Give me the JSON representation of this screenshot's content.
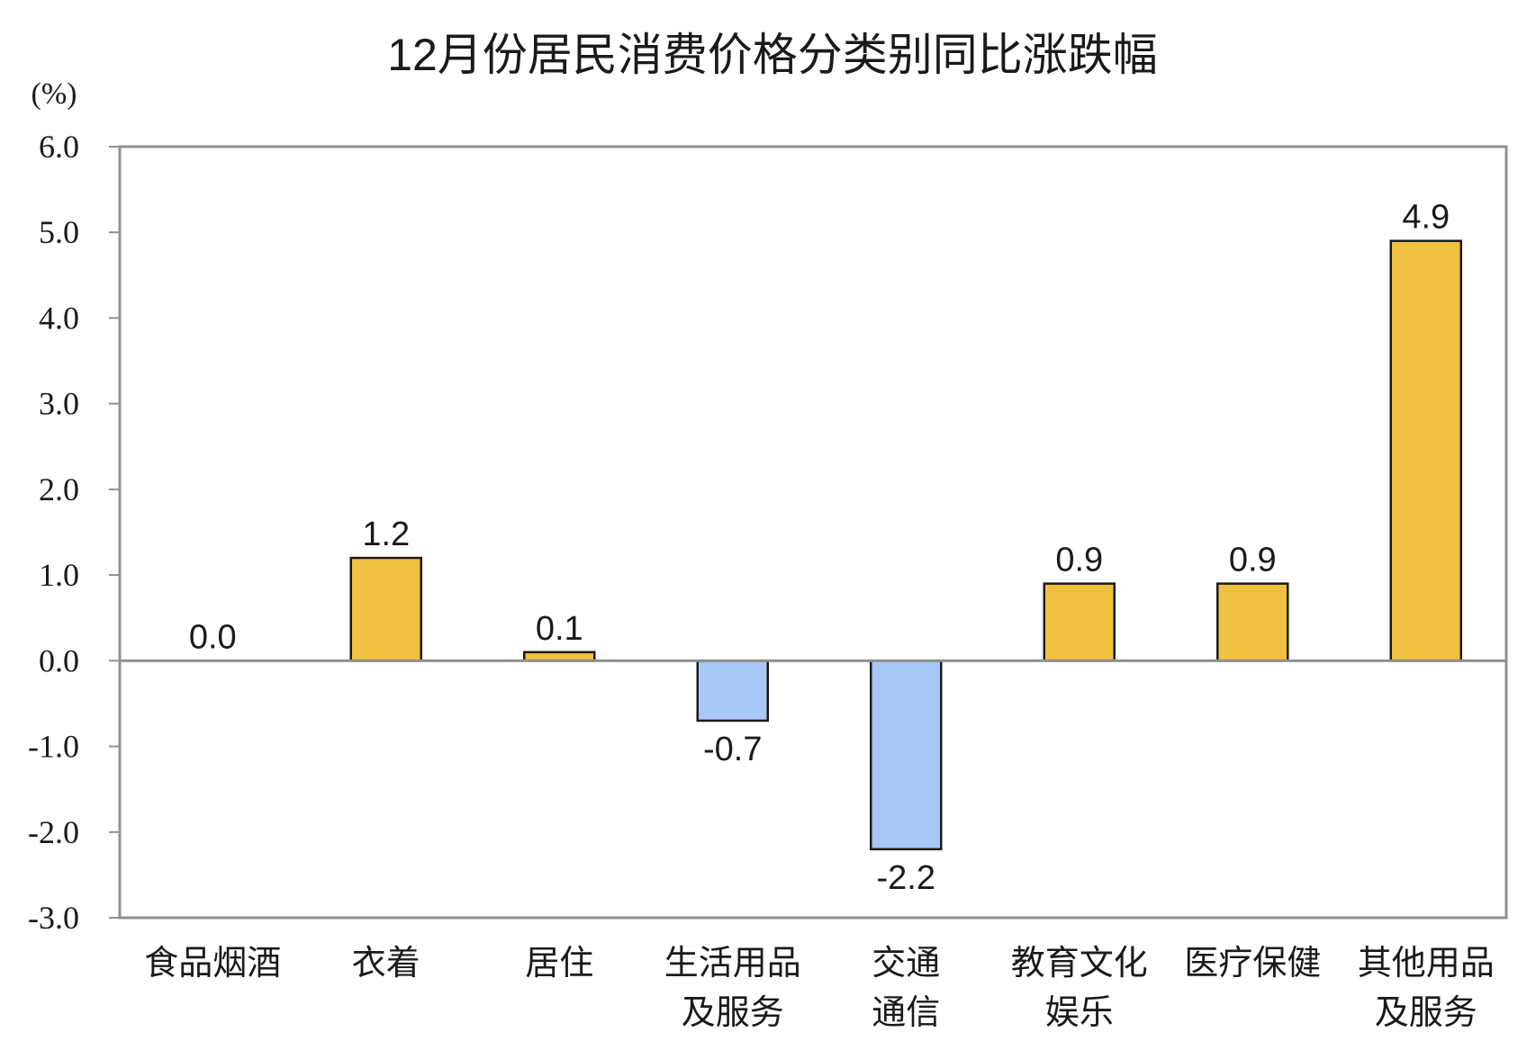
{
  "chart_data": {
    "type": "bar",
    "title": "12月份居民消费价格分类别同比涨跌幅",
    "unit_label": "(%)",
    "ylim": [
      -3.0,
      6.0
    ],
    "yticks": [
      6.0,
      5.0,
      4.0,
      3.0,
      2.0,
      1.0,
      0.0,
      -1.0,
      -2.0,
      -3.0
    ],
    "ytick_labels": [
      "6.0",
      "5.0",
      "4.0",
      "3.0",
      "2.0",
      "1.0",
      "0.0",
      "-1.0",
      "-2.0",
      "-3.0"
    ],
    "categories": [
      [
        "食品烟酒"
      ],
      [
        "衣着"
      ],
      [
        "居住"
      ],
      [
        "生活用品",
        "及服务"
      ],
      [
        "交通",
        "通信"
      ],
      [
        "教育文化",
        "娱乐"
      ],
      [
        "医疗保健"
      ],
      [
        "其他用品",
        "及服务"
      ]
    ],
    "values": [
      0.0,
      1.2,
      0.1,
      -0.7,
      -2.2,
      0.9,
      0.9,
      4.9
    ],
    "value_labels": [
      "0.0",
      "1.2",
      "0.1",
      "-0.7",
      "-2.2",
      "0.9",
      "0.9",
      "4.9"
    ],
    "colors": {
      "positive": "#f0c040",
      "negative": "#a8c8f8",
      "bar_stroke": "#1a1a1a",
      "frame": "#909090",
      "zero_line": "#909090"
    },
    "grid": false,
    "legend": "none"
  }
}
